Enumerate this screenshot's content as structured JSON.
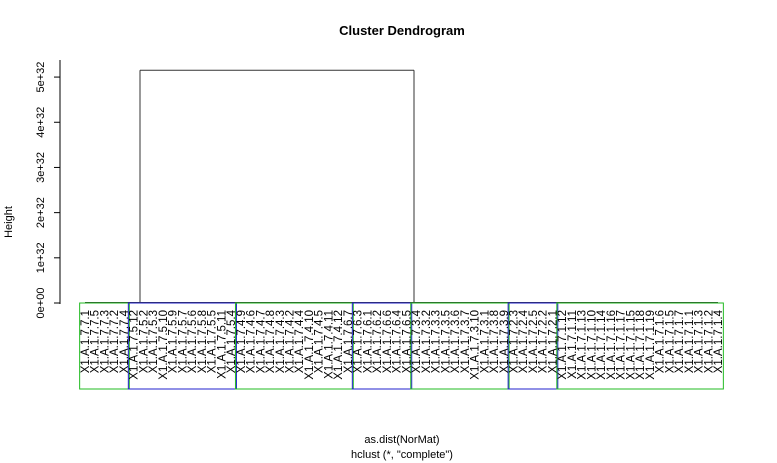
{
  "chart_data": {
    "type": "dendrogram",
    "title": "Cluster Dendrogram",
    "ylabel": "Height",
    "xlabel": "as.dist(NorMat)",
    "sub": "hclust (*, \"complete\")",
    "yticks": [
      "0e+00",
      "1e+32",
      "2e+32",
      "3e+32",
      "4e+32",
      "5e+32"
    ],
    "ylim": [
      0,
      5.4e+32
    ],
    "top_merge_height": 5.15e+32,
    "grid": false,
    "clusters": [
      {
        "color": "#22bb22",
        "leaves": [
          "X1.A.1.7.7.1",
          "X1.A.1.7.7.5",
          "X1.A.1.7.7.3",
          "X1.A.1.7.7.2",
          "X1.A.1.7.7.4"
        ]
      },
      {
        "color": "#2222cc",
        "leaves": [
          "X1.A.1.7.5.12",
          "X1.A.1.7.5.2",
          "X1.A.1.7.5.3",
          "X1.A.1.7.5.10",
          "X1.A.1.7.5.9",
          "X1.A.1.7.5.7",
          "X1.A.1.7.5.6",
          "X1.A.1.7.5.8",
          "X1.A.1.7.5.5",
          "X1.A.1.7.5.11",
          "X1.A.1.7.5.4"
        ]
      },
      {
        "color": "#22bb22",
        "leaves": [
          "X1.A.1.7.4.9",
          "X1.A.1.7.4.6",
          "X1.A.1.7.4.7",
          "X1.A.1.7.4.8",
          "X1.A.1.7.4.3",
          "X1.A.1.7.4.2",
          "X1.A.1.7.4.4",
          "X1.A.1.7.4.10",
          "X1.A.1.7.4.5",
          "X1.A.1.7.4.11",
          "X1.A.1.7.4.12",
          "X1.A.1.7.6.7"
        ]
      },
      {
        "color": "#2222cc",
        "leaves": [
          "X1.A.1.7.6.3",
          "X1.A.1.7.6.1",
          "X1.A.1.7.6.2",
          "X1.A.1.7.6.6",
          "X1.A.1.7.6.4",
          "X1.A.1.7.6.5"
        ]
      },
      {
        "color": "#22bb22",
        "leaves": [
          "X1.A.1.7.3.4",
          "X1.A.1.7.3.2",
          "X1.A.1.7.3.3",
          "X1.A.1.7.3.5",
          "X1.A.1.7.3.6",
          "X1.A.1.7.3.7",
          "X1.A.1.7.3.10",
          "X1.A.1.7.3.1",
          "X1.A.1.7.3.8",
          "X1.A.1.7.3.9"
        ]
      },
      {
        "color": "#2222cc",
        "leaves": [
          "X1.A.1.7.2.3",
          "X1.A.1.7.2.4",
          "X1.A.1.7.2.5",
          "X1.A.1.7.2.2",
          "X1.A.1.7.2.1"
        ]
      },
      {
        "color": "#22bb22",
        "leaves": [
          "X1.A.1.7.1.12",
          "X1.A.1.7.1.11",
          "X1.A.1.7.1.13",
          "X1.A.1.7.1.10",
          "X1.A.1.7.1.14",
          "X1.A.1.7.1.16",
          "X1.A.1.7.1.17",
          "X1.A.1.7.1.15",
          "X1.A.1.7.1.18",
          "X1.A.1.7.1.19",
          "X1.A.1.7.1.6",
          "X1.A.1.7.1.5",
          "X1.A.1.7.1.7",
          "X1.A.1.7.1.1",
          "X1.A.1.7.1.3",
          "X1.A.1.7.1.2",
          "X1.A.1.7.1.4"
        ]
      }
    ]
  }
}
